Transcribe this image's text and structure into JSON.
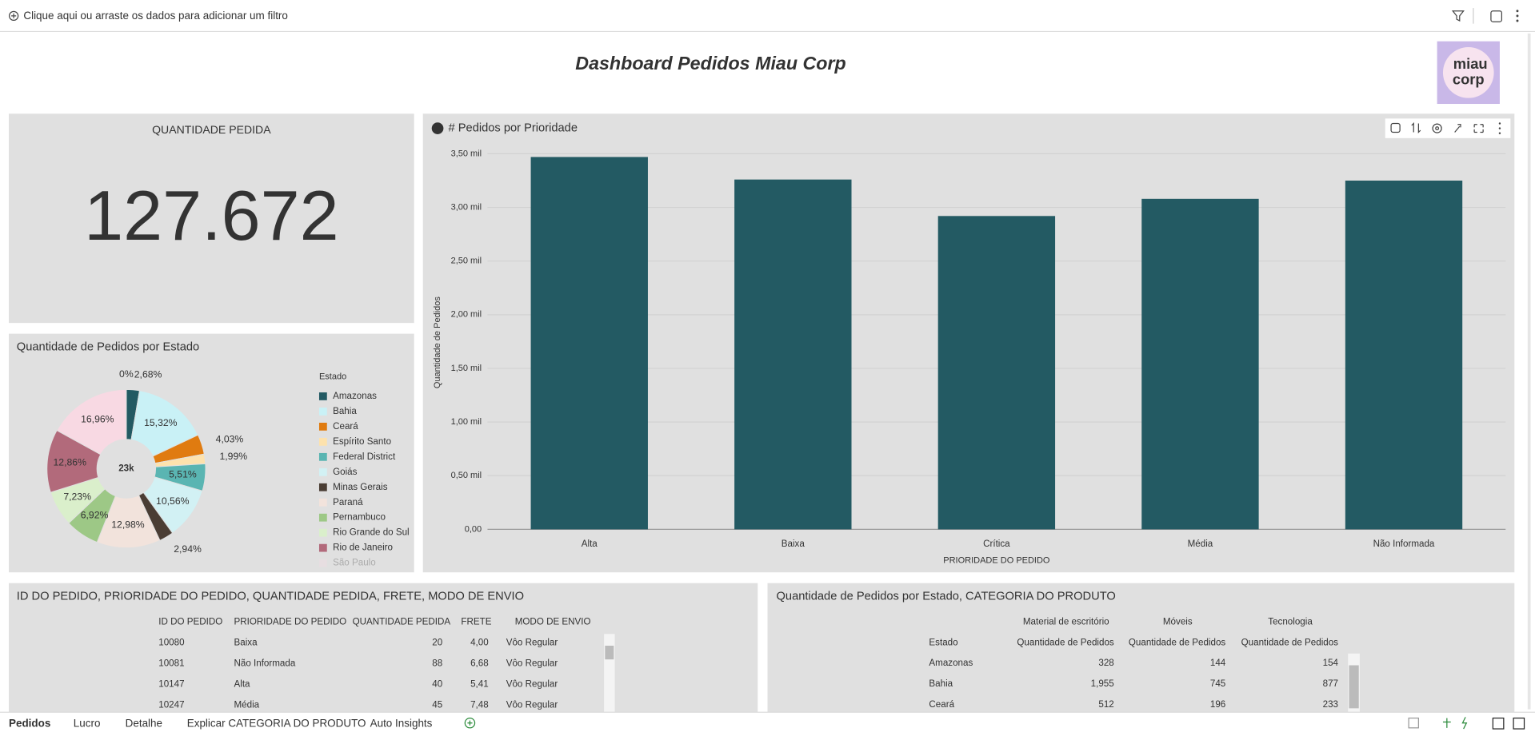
{
  "filter_bar": {
    "placeholder": "Clique aqui ou arraste os dados para adicionar um filtro"
  },
  "header": {
    "title": "Dashboard Pedidos Miau Corp",
    "logo": [
      "miau",
      "corp"
    ]
  },
  "kpi": {
    "label": "QUANTIDADE PEDIDA",
    "value": "127.672"
  },
  "chart_data": [
    {
      "type": "bar",
      "title": "# Pedidos por Prioridade",
      "x_label": "PRIORIDADE DO PEDIDO",
      "y_label": "Quantidade de Pedidos",
      "categories": [
        "Alta",
        "Baixa",
        "Crítica",
        "Média",
        "Não Informada"
      ],
      "values": [
        3470,
        3260,
        2920,
        3080,
        3250
      ],
      "color": "#235a63",
      "ylim": [
        0,
        3500
      ],
      "yticks": [
        {
          "value": 0,
          "label": "0,00"
        },
        {
          "value": 500,
          "label": "0,50 mil"
        },
        {
          "value": 1000,
          "label": "1,00 mil"
        },
        {
          "value": 1500,
          "label": "1,50 mil"
        },
        {
          "value": 2000,
          "label": "2,00 mil"
        },
        {
          "value": 2500,
          "label": "2,50 mil"
        },
        {
          "value": 3000,
          "label": "3,00 mil"
        },
        {
          "value": 3500,
          "label": "3,50 mil"
        }
      ],
      "grid": true
    },
    {
      "type": "donut",
      "title": "Quantidade de Pedidos por Estado",
      "legend_title": "Estado",
      "center_label": "23k",
      "categories": [
        "Amazonas",
        "Bahia",
        "Ceará",
        "Espírito Santo",
        "Federal District",
        "Goiás",
        "Minas Gerais",
        "Paraná",
        "Pernambuco",
        "Rio Grande do Sul",
        "Rio de Janeiro",
        "São Paulo",
        null
      ],
      "values": [
        2.68,
        15.32,
        4.03,
        1.99,
        5.51,
        10.56,
        2.94,
        12.98,
        6.92,
        7.23,
        12.86,
        16.96,
        0
      ],
      "value_labels": [
        "2,68%",
        "15,32%",
        "4,03%",
        "1,99%",
        "5,51%",
        "10,56%",
        "2,94%",
        "12,98%",
        "6,92%",
        "7,23%",
        "12,86%",
        "16,96%",
        "0%"
      ],
      "colors": [
        "#235a63",
        "#c9f1f6",
        "#e07b10",
        "#fde2ad",
        "#5ab5b2",
        "#d2f1f4",
        "#4a3d34",
        "#f2e3dc",
        "#9dc886",
        "#daefcb",
        "#b26a7b",
        "#f8d9e3",
        "#999999"
      ]
    }
  ],
  "table_orders": {
    "title": "ID DO PEDIDO, PRIORIDADE DO PEDIDO, QUANTIDADE PEDIDA, FRETE, MODO DE ENVIO",
    "columns": [
      "ID DO PEDIDO",
      "PRIORIDADE DO PEDIDO",
      "QUANTIDADE PEDIDA",
      "FRETE",
      "MODO DE ENVIO"
    ],
    "rows": [
      [
        "10080",
        "Baixa",
        "20",
        "4,00",
        "Vôo Regular"
      ],
      [
        "10081",
        "Não Informada",
        "88",
        "6,68",
        "Vôo Regular"
      ],
      [
        "10147",
        "Alta",
        "40",
        "5,41",
        "Vôo Regular"
      ],
      [
        "10247",
        "Média",
        "45",
        "7,48",
        "Vôo Regular"
      ]
    ]
  },
  "table_states": {
    "title": "Quantidade de Pedidos por Estado, CATEGORIA DO PRODUTO",
    "group_headers": [
      "Material de escritório",
      "Móveis",
      "Tecnologia"
    ],
    "columns": [
      "Estado",
      "Quantidade de Pedidos",
      "Quantidade de Pedidos",
      "Quantidade de Pedidos"
    ],
    "rows": [
      [
        "Amazonas",
        "328",
        "144",
        "154"
      ],
      [
        "Bahia",
        "1,955",
        "745",
        "877"
      ],
      [
        "Ceará",
        "512",
        "196",
        "233"
      ]
    ]
  },
  "tabs": [
    "Pedidos",
    "Lucro",
    "Detalhe",
    "Explicar CATEGORIA DO PRODUTO",
    "Auto Insights"
  ]
}
